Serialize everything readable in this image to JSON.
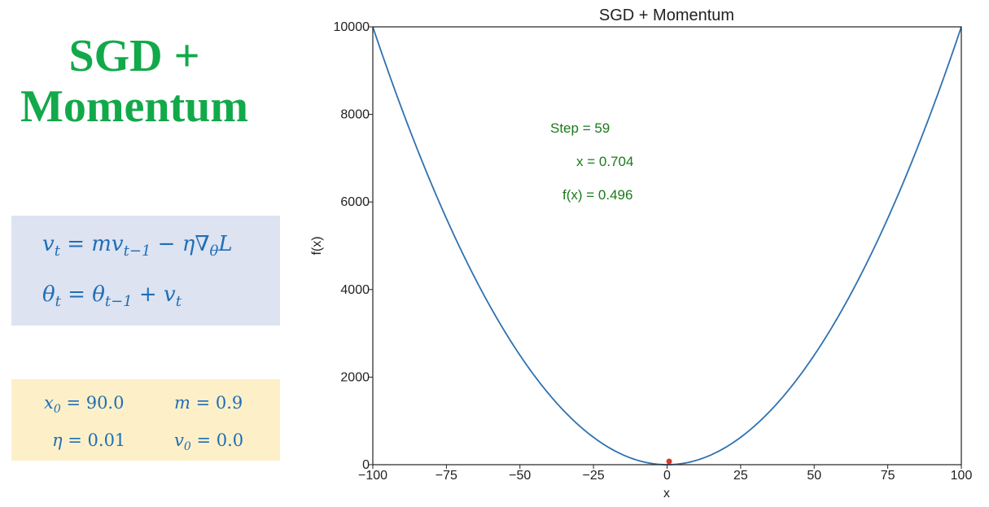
{
  "panel": {
    "title_line1": "SGD +",
    "title_line2": "Momentum",
    "title_color": "#12a94a",
    "equations": {
      "eq1": {
        "v": "v",
        "t": "t",
        "eq": " = ",
        "m": "m",
        "v2": "v",
        "tm1": "t−1",
        "minus": " − ",
        "eta": "η",
        "nabla": "∇",
        "theta": "θ",
        "L": "L"
      },
      "eq2": {
        "theta": "θ",
        "t": "t",
        "eq": " = ",
        "theta2": "θ",
        "tm1": "t−1",
        "plus": " + ",
        "v": "v",
        "t2": "t"
      }
    },
    "params": {
      "x0": {
        "sym": "x",
        "sub": "0",
        "rest": " = 90.0"
      },
      "m": {
        "sym": "m",
        "sub": "",
        "rest": " = 0.9"
      },
      "eta": {
        "sym": "η",
        "sub": "",
        "rest": " = 0.01"
      },
      "v0": {
        "sym": "v",
        "sub": "0",
        "rest": " = 0.0"
      }
    },
    "eq_box_color": "#dde3f1",
    "param_box_color": "#fdf0c8",
    "math_color": "#1f6eb6"
  },
  "chart_data": {
    "type": "line",
    "title": "SGD + Momentum",
    "xlabel": "x",
    "ylabel": "f(x)",
    "xlim": [
      -100,
      100
    ],
    "ylim": [
      0,
      10000
    ],
    "xticks": [
      -100,
      -75,
      -50,
      -25,
      0,
      25,
      50,
      75,
      100
    ],
    "xtick_labels": [
      "−100",
      "−75",
      "−50",
      "−25",
      "0",
      "25",
      "50",
      "75",
      "100"
    ],
    "yticks": [
      0,
      2000,
      4000,
      6000,
      8000,
      10000
    ],
    "ytick_labels": [
      "0",
      "2000",
      "4000",
      "6000",
      "8000",
      "10000"
    ],
    "grid": false,
    "function": "x^2",
    "series": [
      {
        "x": [
          -100,
          -90,
          -80,
          -70,
          -60,
          -50,
          -40,
          -30,
          -20,
          -10,
          0,
          10,
          20,
          30,
          40,
          50,
          60,
          70,
          80,
          90,
          100
        ],
        "y": [
          10000,
          8100,
          6400,
          4900,
          3600,
          2500,
          1600,
          900,
          400,
          100,
          0,
          100,
          400,
          900,
          1600,
          2500,
          3600,
          4900,
          6400,
          8100,
          10000
        ],
        "color": "#2f72b0"
      }
    ],
    "current_point": {
      "x": 0.704,
      "y": 0.496,
      "color": "#d43c2c"
    },
    "annotations": {
      "step": "Step = 59",
      "x": "x = 0.704",
      "fx": "f(x) = 0.496",
      "color": "#1a7a1a"
    }
  }
}
